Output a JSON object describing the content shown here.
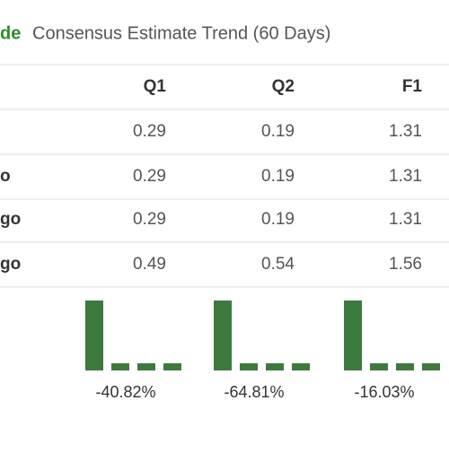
{
  "header": {
    "prefix": "de",
    "title": "Consensus Estimate Trend (60 Days)"
  },
  "table": {
    "columns": [
      "Q1",
      "Q2",
      "F1"
    ],
    "rows": [
      {
        "values": [
          0.29,
          0.19,
          1.31
        ]
      },
      {
        "label": "o",
        "values": [
          0.29,
          0.19,
          1.31
        ]
      },
      {
        "label": "go",
        "values": [
          0.29,
          0.19,
          1.31
        ]
      },
      {
        "label": "go",
        "values": [
          0.49,
          0.54,
          1.56
        ]
      }
    ],
    "changes": [
      "-40.82%",
      "-64.81%",
      "-16.03%"
    ]
  }
}
